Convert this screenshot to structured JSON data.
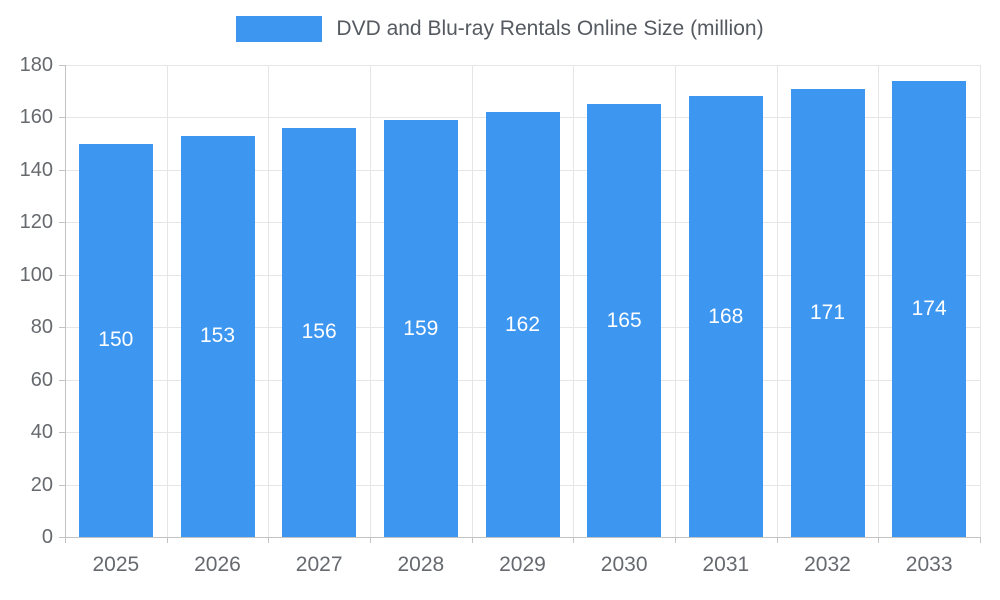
{
  "chart_data": {
    "type": "bar",
    "title": "DVD and Blu-ray Rentals Online Size (million)",
    "categories": [
      "2025",
      "2026",
      "2027",
      "2028",
      "2029",
      "2030",
      "2031",
      "2032",
      "2033"
    ],
    "values": [
      150,
      153,
      156,
      159,
      162,
      165,
      168,
      171,
      174
    ],
    "xlabel": "",
    "ylabel": "",
    "ylim": [
      0,
      180
    ],
    "ytick_step": 20,
    "grid": true,
    "legend_position": "top-center",
    "value_labels": "inside-center",
    "colors": {
      "bar": "#3d96f0",
      "grid": "#e6e6e6",
      "axis": "#c3c3c3",
      "tick_text": "#66696e",
      "title_text": "#555a60",
      "value_text": "#ffffff"
    }
  }
}
